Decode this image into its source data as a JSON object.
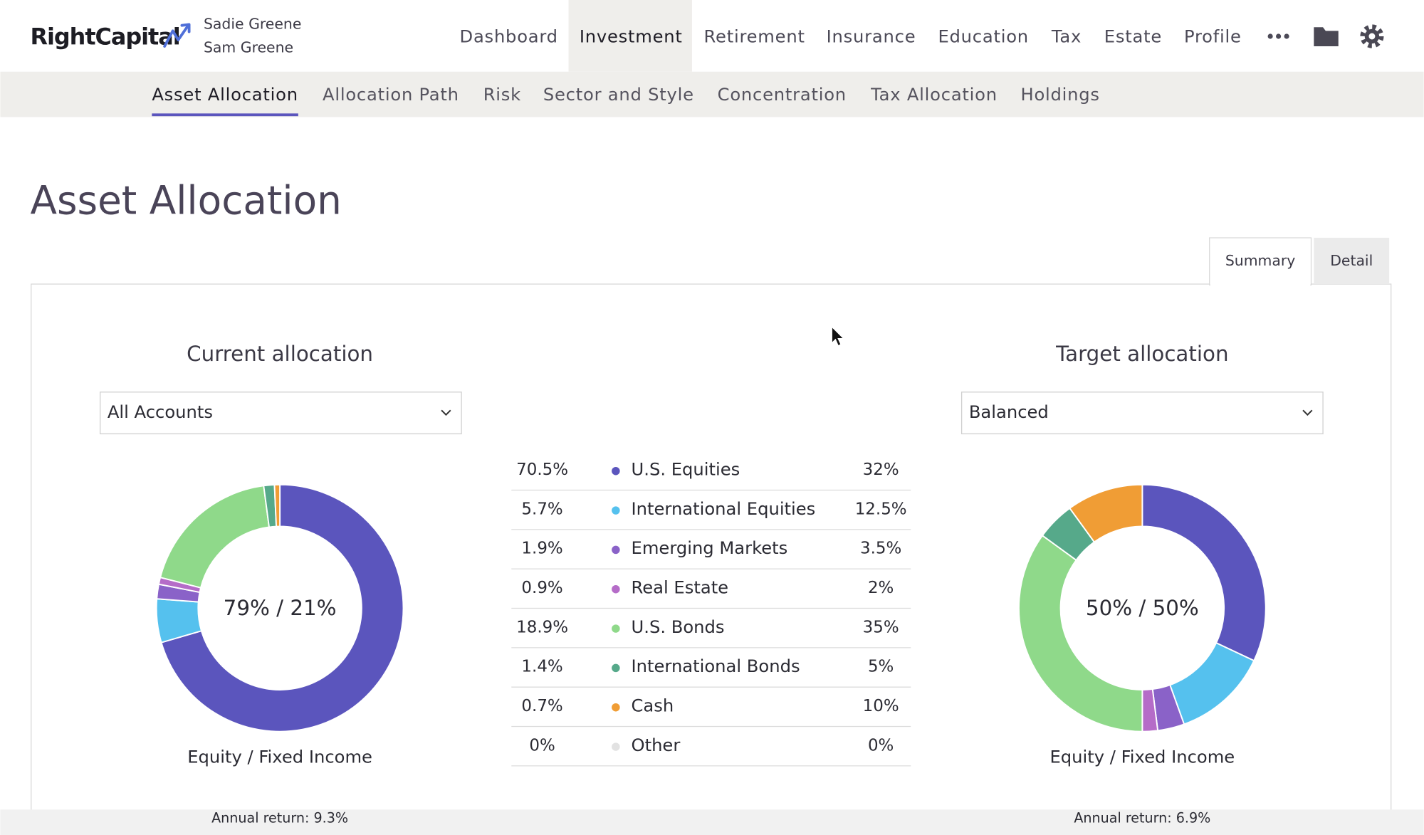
{
  "header": {
    "brand": "RightCapital",
    "users": [
      "Sadie Greene",
      "Sam Greene"
    ],
    "nav": [
      "Dashboard",
      "Investment",
      "Retirement",
      "Insurance",
      "Education",
      "Tax",
      "Estate",
      "Profile"
    ],
    "active_nav": 1
  },
  "subnav": {
    "items": [
      "Asset Allocation",
      "Allocation Path",
      "Risk",
      "Sector and Style",
      "Concentration",
      "Tax Allocation",
      "Holdings"
    ],
    "active": 0
  },
  "page_title": "Asset Allocation",
  "tabs": {
    "items": [
      "Summary",
      "Detail"
    ],
    "active": 0
  },
  "current": {
    "title": "Current allocation",
    "selector": "All Accounts",
    "center_label": "79% / 21%",
    "caption": "Equity / Fixed Income",
    "annual_return": "Annual return: 9.3%"
  },
  "target": {
    "title": "Target allocation",
    "selector": "Balanced",
    "center_label": "50% / 50%",
    "caption": "Equity / Fixed Income",
    "annual_return": "Annual return: 6.9%"
  },
  "allocation": {
    "type": "pie",
    "categories": [
      "U.S. Equities",
      "International Equities",
      "Emerging Markets",
      "Real Estate",
      "U.S. Bonds",
      "International Bonds",
      "Cash",
      "Other"
    ],
    "colors": [
      "#5b55bd",
      "#55c1ee",
      "#8a62c8",
      "#b56cc8",
      "#8fd98a",
      "#56a98a",
      "#f09d35",
      "#e2e2e2"
    ],
    "current_values": [
      70.5,
      5.7,
      1.9,
      0.9,
      18.9,
      1.4,
      0.7,
      0
    ],
    "current_value_labels": [
      "70.5%",
      "5.7%",
      "1.9%",
      "0.9%",
      "18.9%",
      "1.4%",
      "0.7%",
      "0%"
    ],
    "target_values": [
      32,
      12.5,
      3.5,
      2,
      35,
      5,
      10,
      0
    ],
    "target_value_labels": [
      "32%",
      "12.5%",
      "3.5%",
      "2%",
      "35%",
      "5%",
      "10%",
      "0%"
    ]
  }
}
